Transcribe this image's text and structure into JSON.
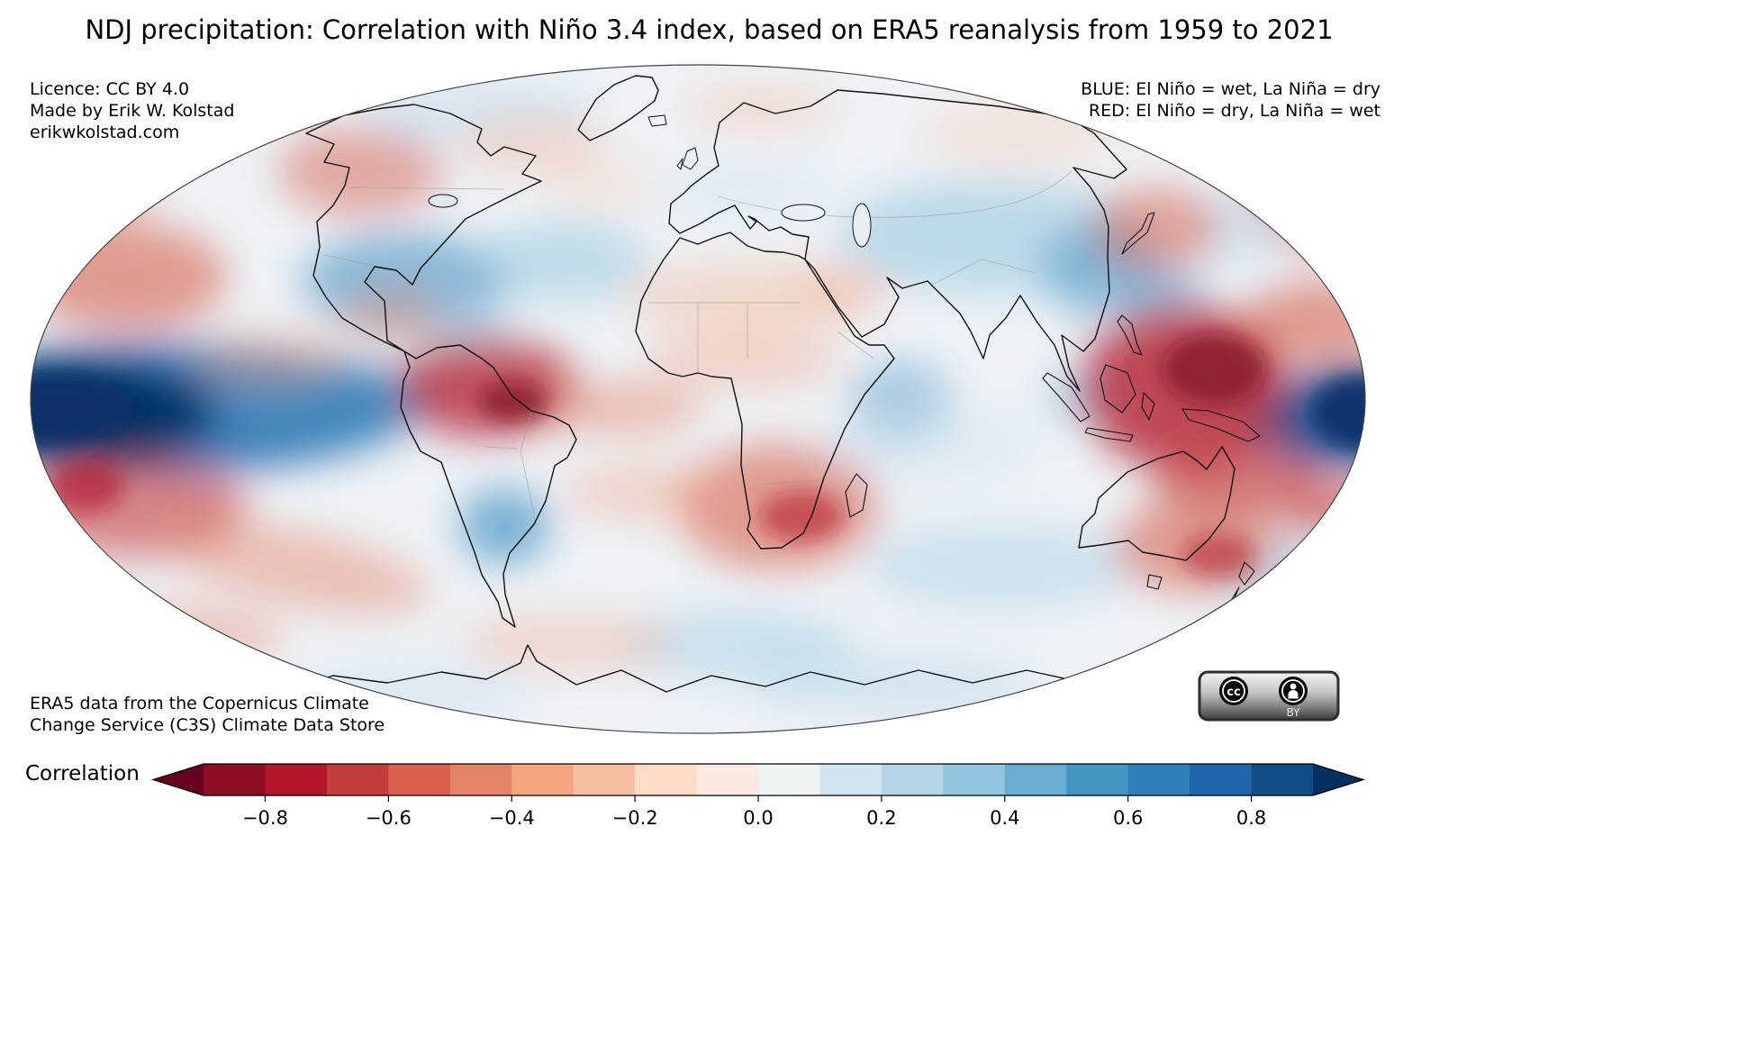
{
  "title": "NDJ precipitation: Correlation with Niño 3.4 index, based on ERA5 reanalysis from 1959 to 2021",
  "credits": {
    "licence": "Licence: CC BY 4.0",
    "author": "Made by Erik W. Kolstad",
    "website": "erikwkolstad.com"
  },
  "legend": {
    "blue": "BLUE: El Niño = wet, La Niña = dry",
    "red": "RED: El Niño = dry, La Niña = wet"
  },
  "source_note": {
    "line1": "ERA5 data from the Copernicus Climate",
    "line2": "Change Service (C3S) Climate Data Store"
  },
  "cc_badge": {
    "cc_label": "cc",
    "by_label": "BY"
  },
  "colorbar": {
    "label": "Correlation",
    "tick_labels": [
      "−0.8",
      "−0.6",
      "−0.4",
      "−0.2",
      "0.0",
      "0.2",
      "0.4",
      "0.6",
      "0.8"
    ],
    "segment_colors": [
      "#8c0d25",
      "#b2182b",
      "#c43c3c",
      "#d6604d",
      "#e58368",
      "#f4a582",
      "#f7bfa1",
      "#fddbc7",
      "#faeae2",
      "#eef3f6",
      "#d1e5f0",
      "#b3d5e7",
      "#92c5de",
      "#6bacd1",
      "#4393c3",
      "#3280b9",
      "#2166ac",
      "#134c87"
    ],
    "under_color": "#67001f",
    "over_color": "#053061"
  },
  "chart_data": {
    "type": "heatmap",
    "projection": "Mollweide world map",
    "variable": "Correlation of NDJ precipitation with Niño 3.4 index",
    "dataset": "ERA5 reanalysis",
    "period": "1959 to 2021",
    "title": "NDJ precipitation: Correlation with Niño 3.4 index, based on ERA5 reanalysis from 1959 to 2021",
    "colorbar_label": "Correlation",
    "colorbar_ticks": [
      -0.8,
      -0.6,
      -0.4,
      -0.2,
      0.0,
      0.2,
      0.4,
      0.6,
      0.8
    ],
    "value_range": [
      -0.9,
      0.9
    ],
    "colormap": "RdBu diverging (red = negative, blue = positive)",
    "regions": [
      {
        "region": "Eastern equatorial Pacific (left map edge)",
        "correlation": 0.9
      },
      {
        "region": "Central/western equatorial Pacific near date line (right map edge)",
        "correlation": 0.85
      },
      {
        "region": "Maritime Continent / Indonesia / New Guinea / western Pacific",
        "correlation": -0.8
      },
      {
        "region": "Northern South America / Amazon basin",
        "correlation": -0.6
      },
      {
        "region": "Southern United States / Gulf of Mexico",
        "correlation": 0.4
      },
      {
        "region": "Southeastern South America (La Plata basin)",
        "correlation": 0.4
      },
      {
        "region": "Southern Africa",
        "correlation": -0.4
      },
      {
        "region": "Northern and eastern Australia",
        "correlation": -0.5
      },
      {
        "region": "East Africa (Horn of Africa)",
        "correlation": 0.3
      },
      {
        "region": "Central Asia",
        "correlation": 0.3
      },
      {
        "region": "Southeast China / East Asia coast",
        "correlation": 0.4
      },
      {
        "region": "North Pacific midlatitudes",
        "correlation": -0.4
      },
      {
        "region": "South-central Pacific",
        "correlation": -0.5
      },
      {
        "region": "Alaska / northwestern North America",
        "correlation": -0.3
      },
      {
        "region": "North Atlantic subtropics",
        "correlation": 0.2
      },
      {
        "region": "Southern Ocean",
        "correlation": 0.1
      }
    ]
  }
}
